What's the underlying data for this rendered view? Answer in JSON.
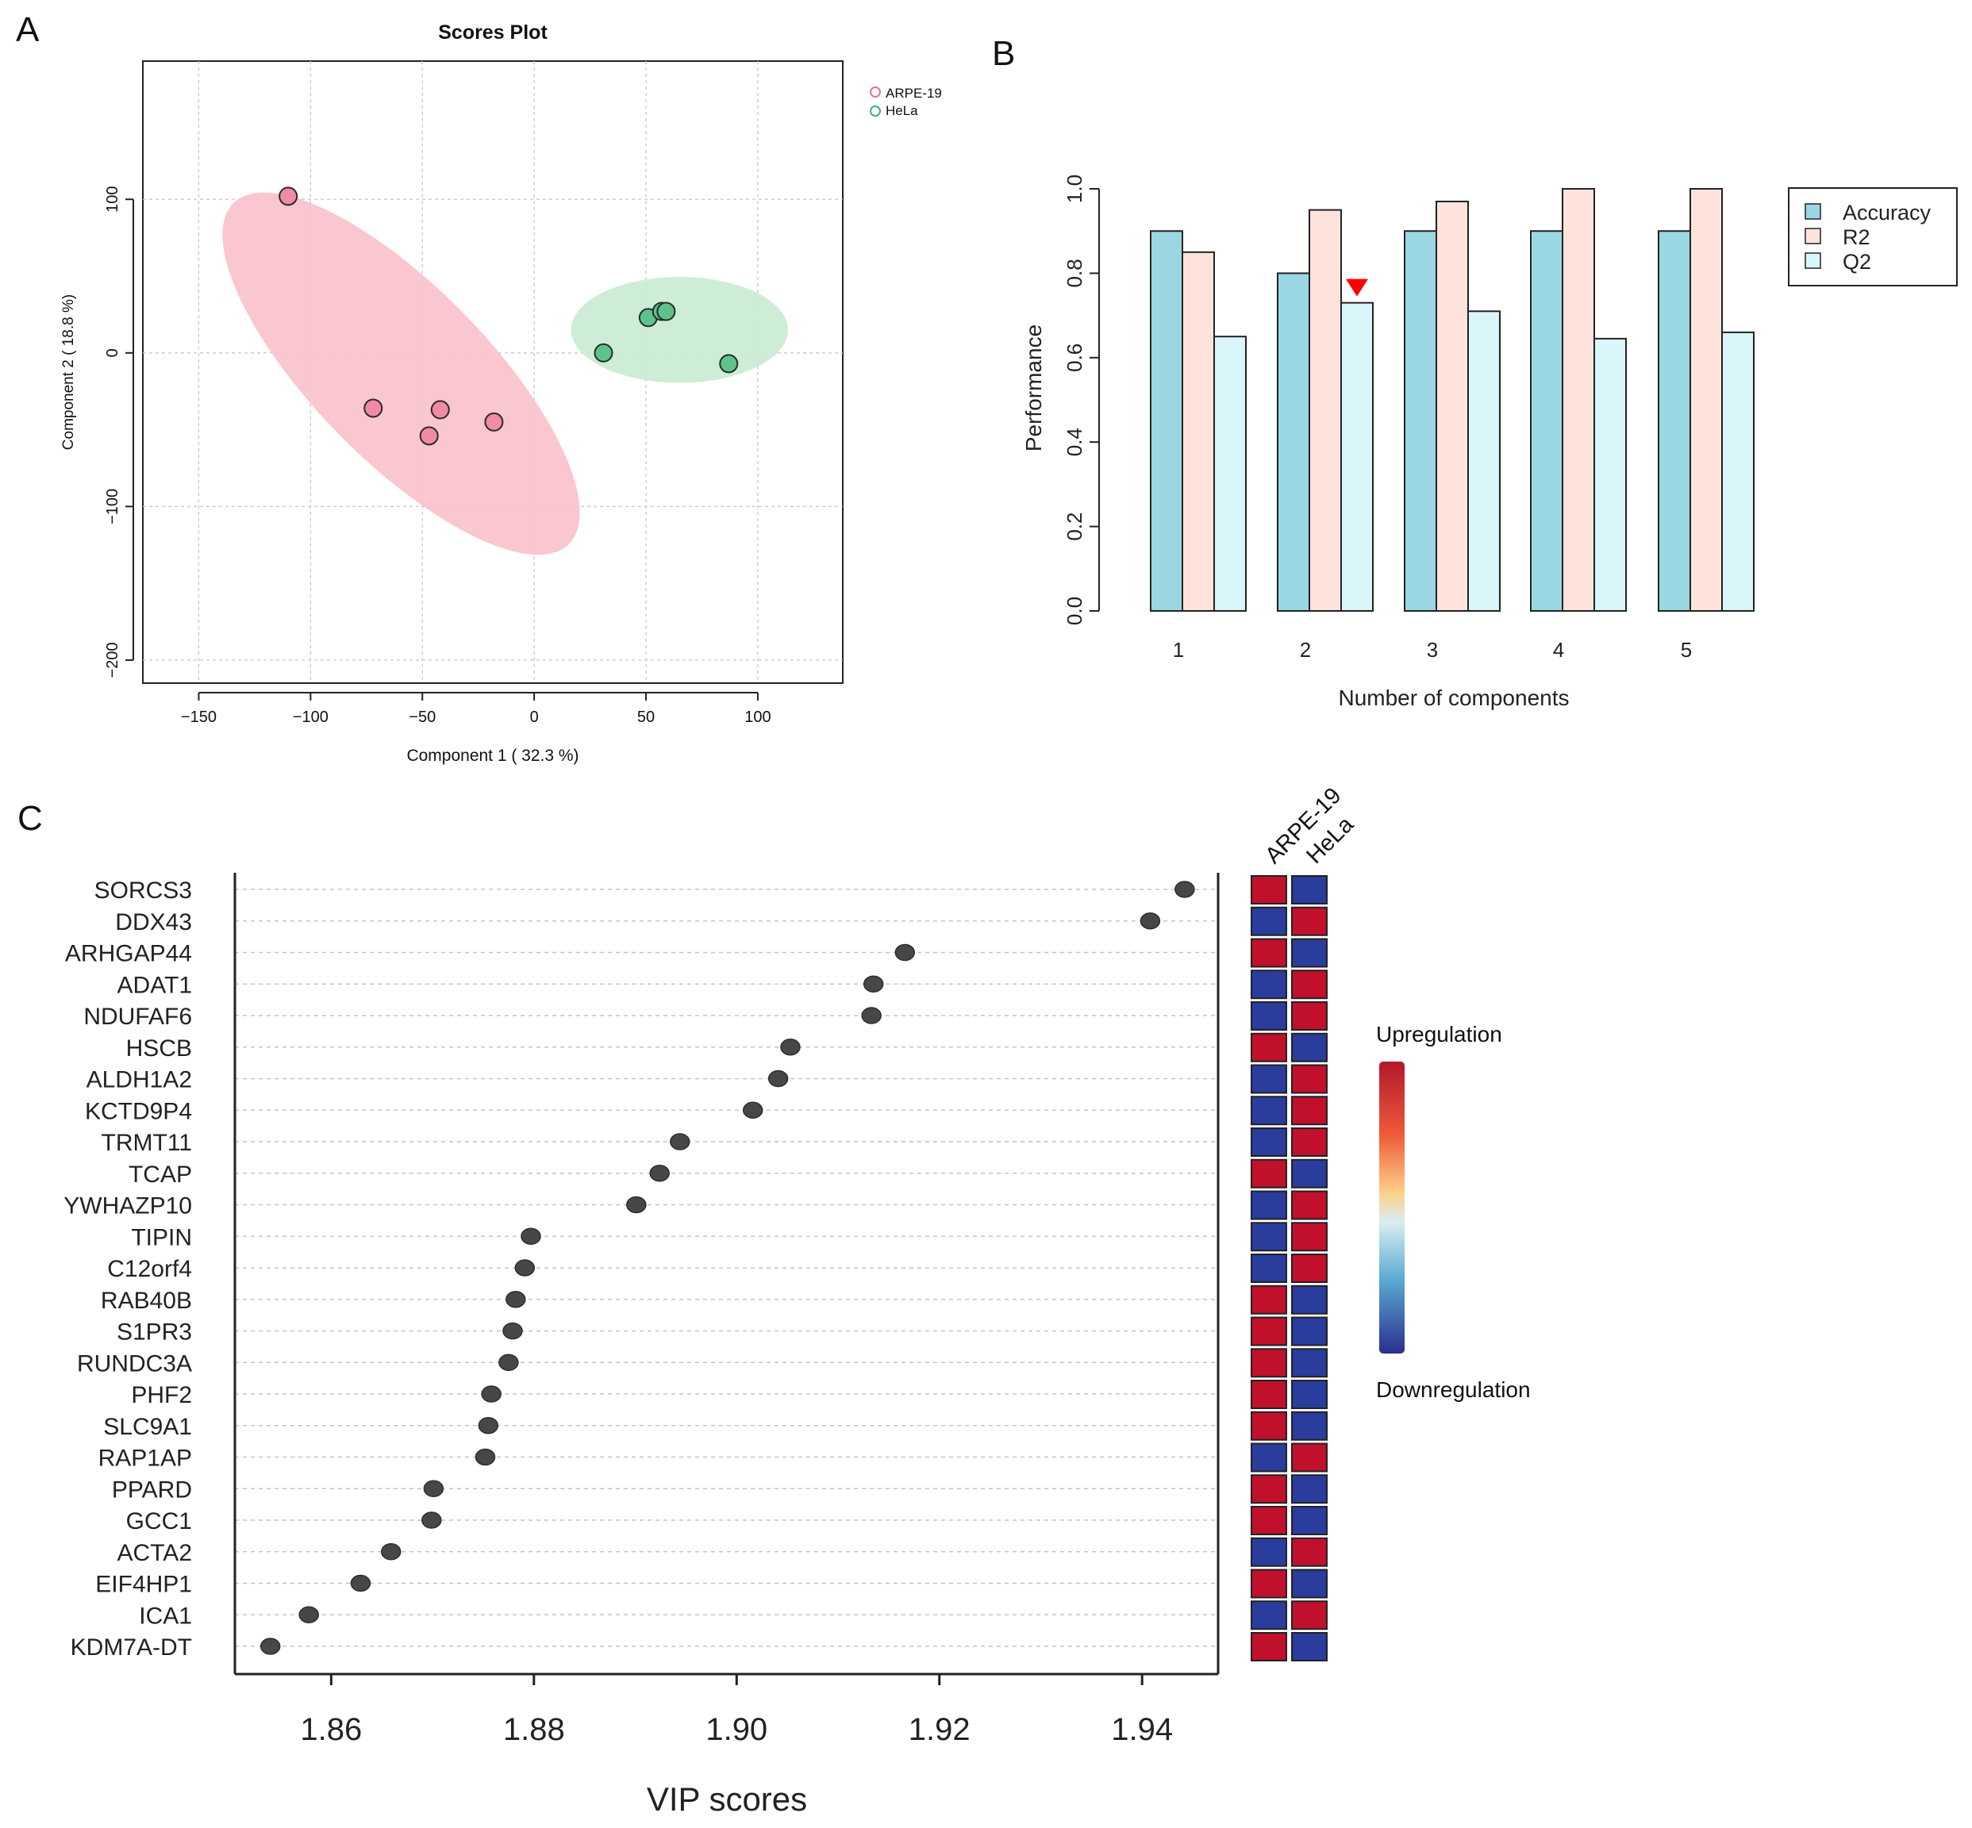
{
  "panel_labels": {
    "a": "A",
    "b": "B",
    "c": "C"
  },
  "colors": {
    "arpe": "#e8728f",
    "arpe_fill": "#f9c0cb",
    "hela": "#3cb371",
    "hela_fill": "#c9ebd2",
    "accuracy": "#9ad7e3",
    "r2": "#fde3dc",
    "q2": "#d9f6fb",
    "up": "#c0102c",
    "down": "#2a3c9c",
    "marker": "#ff0000",
    "dot": "#474747"
  },
  "chart_data": [
    {
      "id": "scores_plot",
      "type": "scatter",
      "title": "Scores Plot",
      "xlabel": "Component 1 ( 32.3 %)",
      "ylabel": "Component 2 ( 18.8 %)",
      "xlim": [
        -175,
        138
      ],
      "ylim": [
        -215,
        190
      ],
      "xticks": [
        -150,
        -100,
        -50,
        0,
        50,
        100
      ],
      "yticks": [
        100,
        0,
        -100,
        -200
      ],
      "xtick_labels": [
        "−150",
        "−100",
        "−50",
        "0",
        "50",
        "100"
      ],
      "ytick_labels": [
        "100",
        "0",
        "−100",
        "−200"
      ],
      "grid": true,
      "legend_position": "top-right (outside)",
      "series": [
        {
          "name": "ARPE-19",
          "color_key": "arpe",
          "points": [
            [
              -110,
              102
            ],
            [
              -72,
              -36
            ],
            [
              -42,
              -37
            ],
            [
              -47,
              -54
            ],
            [
              -18,
              -45
            ]
          ],
          "ellipse": {
            "cx": -59.5,
            "cy": -13.5,
            "rx": 134,
            "ry": 42.5,
            "angle_deg": -56
          }
        },
        {
          "name": "HeLa",
          "color_key": "hela",
          "points": [
            [
              31,
              0
            ],
            [
              51,
              23
            ],
            [
              57,
              27
            ],
            [
              59,
              27
            ],
            [
              87,
              -7
            ]
          ],
          "ellipse": {
            "cx": 65,
            "cy": 15,
            "rx": 48.5,
            "ry": 34.5,
            "angle_deg": 0
          }
        }
      ]
    },
    {
      "id": "performance",
      "type": "bar",
      "categories": [
        "1",
        "2",
        "3",
        "4",
        "5"
      ],
      "xlabel": "Number of components",
      "ylabel": "Performance",
      "ylim": [
        0,
        1.0
      ],
      "yticks": [
        0.0,
        0.2,
        0.4,
        0.6,
        0.8,
        1.0
      ],
      "ytick_labels": [
        "0.0",
        "0.2",
        "0.4",
        "0.6",
        "0.8",
        "1.0"
      ],
      "legend_position": "top-right",
      "best_marker": {
        "category_index": 1,
        "series": "Q2"
      },
      "series": [
        {
          "name": "Accuracy",
          "color_key": "accuracy",
          "values": [
            0.9,
            0.8,
            0.9,
            0.9,
            0.9
          ]
        },
        {
          "name": "R2",
          "color_key": "r2",
          "values": [
            0.85,
            0.95,
            0.97,
            1.0,
            1.0
          ]
        },
        {
          "name": "Q2",
          "color_key": "q2",
          "values": [
            0.65,
            0.73,
            0.71,
            0.645,
            0.66
          ]
        }
      ]
    },
    {
      "id": "vip",
      "type": "scatter",
      "xlabel": "VIP scores",
      "xlim": [
        1.8505,
        1.9475
      ],
      "xticks": [
        1.86,
        1.88,
        1.9,
        1.92,
        1.94
      ],
      "xtick_labels": [
        "1.86",
        "1.88",
        "1.90",
        "1.92",
        "1.94"
      ],
      "columns": [
        "ARPE-19",
        "HeLa"
      ],
      "colorbar": {
        "top_label": "Upregulation",
        "bottom_label": "Downregulation"
      },
      "genes": [
        "SORCS3",
        "DDX43",
        "ARHGAP44",
        "ADAT1",
        "NDUFAF6",
        "HSCB",
        "ALDH1A2",
        "KCTD9P4",
        "TRMT11",
        "TCAP",
        "YWHAZP10",
        "TIPIN",
        "C12orf4",
        "RAB40B",
        "S1PR3",
        "RUNDC3A",
        "PHF2",
        "SLC9A1",
        "RAP1AP",
        "PPARD",
        "GCC1",
        "ACTA2",
        "EIF4HP1",
        "ICA1",
        "KDM7A-DT"
      ],
      "values": [
        1.9442,
        1.9408,
        1.9166,
        1.9135,
        1.9133,
        1.9053,
        1.9041,
        1.9016,
        1.8944,
        1.8924,
        1.8901,
        1.8797,
        1.8791,
        1.8782,
        1.8779,
        1.8775,
        1.8758,
        1.8755,
        1.8752,
        1.8701,
        1.8699,
        1.8659,
        1.8629,
        1.8578,
        1.854
      ],
      "arpe_up": [
        true,
        false,
        true,
        false,
        false,
        true,
        false,
        false,
        false,
        true,
        false,
        false,
        false,
        true,
        true,
        true,
        true,
        true,
        false,
        true,
        true,
        false,
        true,
        false,
        true
      ]
    }
  ]
}
